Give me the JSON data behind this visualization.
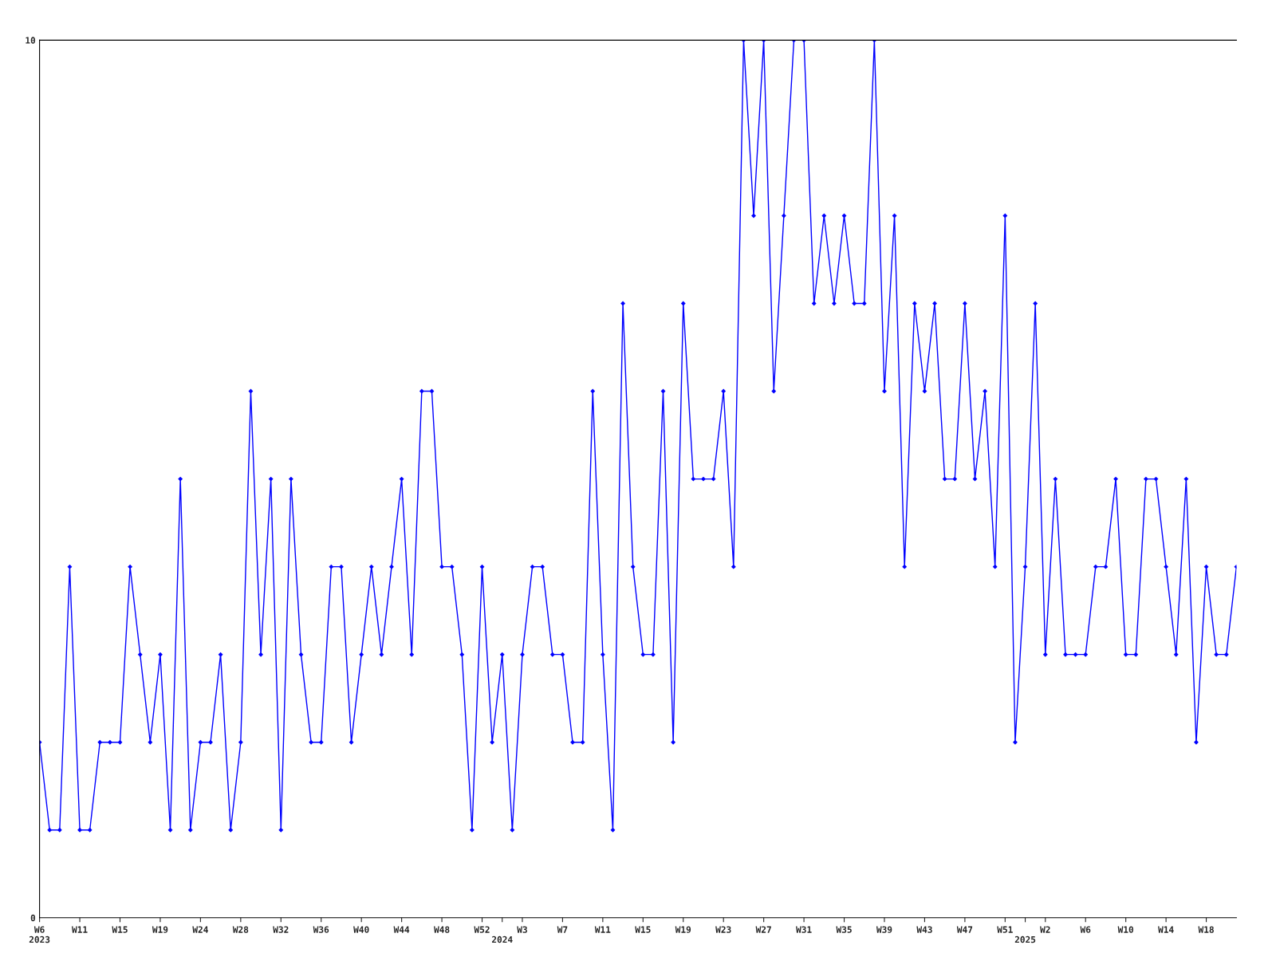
{
  "chart_data": {
    "type": "line",
    "categories": [
      "W6\n2023",
      null,
      null,
      null,
      "W11",
      null,
      null,
      null,
      "W15",
      null,
      null,
      null,
      "W19",
      null,
      null,
      null,
      "W24",
      null,
      null,
      null,
      "W28",
      null,
      null,
      null,
      "W32",
      null,
      null,
      null,
      "W36",
      null,
      null,
      null,
      "W40",
      null,
      null,
      null,
      "W44",
      null,
      null,
      null,
      "W48",
      null,
      null,
      null,
      "W52",
      null,
      "\n2024",
      null,
      "W3",
      null,
      null,
      null,
      "W7",
      null,
      null,
      null,
      "W11",
      null,
      null,
      null,
      "W15",
      null,
      null,
      null,
      "W19",
      null,
      null,
      null,
      "W23",
      null,
      null,
      null,
      "W27",
      null,
      null,
      null,
      "W31",
      null,
      null,
      null,
      "W35",
      null,
      null,
      null,
      "W39",
      null,
      null,
      null,
      "W43",
      null,
      null,
      null,
      "W47",
      null,
      null,
      null,
      "W51",
      null,
      "\n2025",
      null,
      "W2",
      null,
      null,
      null,
      "W6",
      null,
      null,
      null,
      "W10",
      null,
      null,
      null,
      "W14",
      null,
      null,
      null,
      "W18",
      null,
      null,
      null
    ],
    "series": [
      {
        "color": "#0000ff",
        "values": [
          2,
          1,
          1,
          4,
          1,
          1,
          2,
          2,
          2,
          4,
          3,
          2,
          3,
          1,
          5,
          1,
          2,
          2,
          3,
          1,
          2,
          6,
          3,
          5,
          1,
          5,
          3,
          2,
          2,
          4,
          4,
          2,
          3,
          4,
          3,
          4,
          5,
          3,
          6,
          6,
          4,
          4,
          3,
          1,
          4,
          2,
          3,
          1,
          3,
          4,
          4,
          3,
          3,
          2,
          2,
          6,
          3,
          1,
          7,
          4,
          3,
          3,
          6,
          2,
          7,
          5,
          5,
          5,
          6,
          4,
          10,
          8,
          10,
          6,
          8,
          10,
          10,
          7,
          8,
          7,
          8,
          7,
          7,
          10,
          6,
          8,
          4,
          7,
          6,
          7,
          5,
          5,
          7,
          5,
          6,
          4,
          8,
          2,
          4,
          7,
          3,
          5,
          3,
          3,
          3,
          4,
          4,
          5,
          3,
          3,
          5,
          5,
          4,
          3,
          5,
          2,
          4,
          3,
          3,
          4
        ]
      }
    ],
    "ylim": [
      0,
      10
    ],
    "yticks": [
      0,
      10
    ],
    "grid": false,
    "marker": "diamond",
    "line_style": "solid"
  }
}
